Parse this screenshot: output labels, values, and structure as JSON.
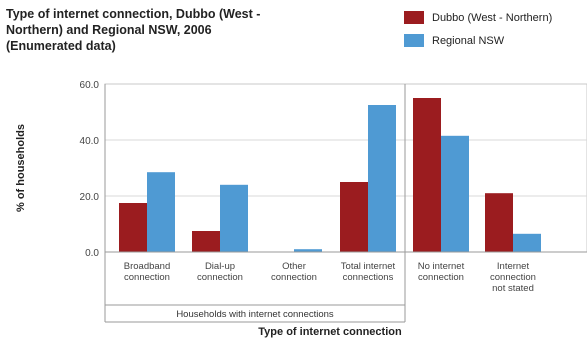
{
  "chart_data": {
    "type": "bar",
    "title_lines": [
      "Type of internet connection, Dubbo (West -",
      "Northern) and Regional NSW, 2006",
      "(Enumerated data)"
    ],
    "xlabel": "Type of internet connection",
    "ylabel": "% of households",
    "ylim": [
      0,
      60
    ],
    "yticks": [
      "0.0",
      "20.0",
      "40.0",
      "60.0"
    ],
    "grid": true,
    "legend_position": "top-right",
    "group_label": "Households with internet connections",
    "categories": [
      [
        "Broadband",
        "connection"
      ],
      [
        "Dial-up",
        "connection"
      ],
      [
        "Other",
        "connection"
      ],
      [
        "Total internet",
        "connections"
      ],
      [
        "No internet",
        "connection"
      ],
      [
        "Internet",
        "connection",
        "not stated"
      ]
    ],
    "series": [
      {
        "name": "Dubbo (West - Northern)",
        "color": "#9b1c1f",
        "values": [
          17.5,
          7.5,
          0.0,
          25.0,
          55.0,
          21.0
        ]
      },
      {
        "name": "Regional NSW",
        "color": "#4f9ad3",
        "values": [
          28.5,
          24.0,
          1.0,
          52.5,
          41.5,
          6.5
        ]
      }
    ]
  }
}
